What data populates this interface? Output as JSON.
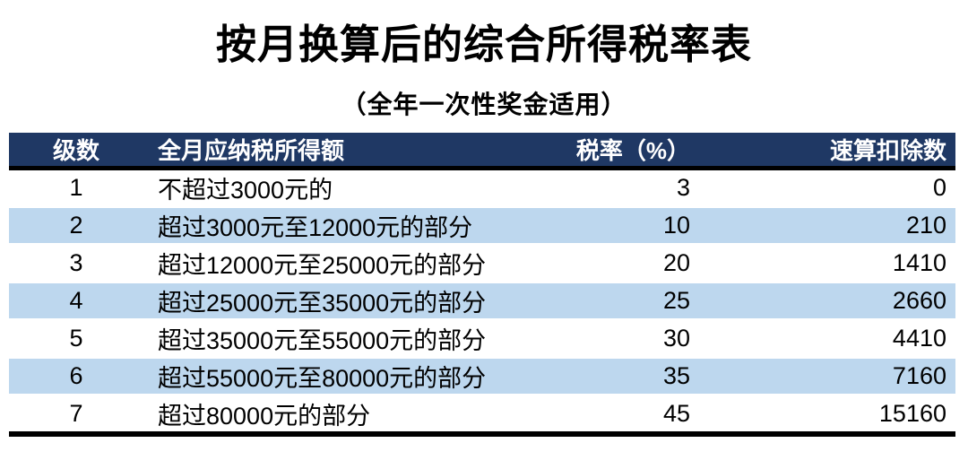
{
  "title": "按月换算后的综合所得税率表",
  "subtitle": "（全年一次性奖金适用）",
  "table": {
    "colors": {
      "header_bg": "#1F3864",
      "header_text": "#FFFFFF",
      "stripe_bg": "#BDD7EE",
      "row_bg": "#FFFFFF",
      "rule_color": "#000000",
      "text_color": "#000000",
      "page_bg": "#FFFFFF"
    },
    "columns": [
      {
        "key": "level",
        "label": "级数",
        "align": "center"
      },
      {
        "key": "income",
        "label": "全月应纳税所得额",
        "align": "left"
      },
      {
        "key": "rate",
        "label": "税率（%）",
        "align": "right"
      },
      {
        "key": "deduction",
        "label": "速算扣除数",
        "align": "right"
      }
    ],
    "rows": [
      {
        "level": "1",
        "income": "不超过3000元的",
        "rate": "3",
        "deduction": "0"
      },
      {
        "level": "2",
        "income": "超过3000元至12000元的部分",
        "rate": "10",
        "deduction": "210"
      },
      {
        "level": "3",
        "income": "超过12000元至25000元的部分",
        "rate": "20",
        "deduction": "1410"
      },
      {
        "level": "4",
        "income": "超过25000元至35000元的部分",
        "rate": "25",
        "deduction": "2660"
      },
      {
        "level": "5",
        "income": "超过35000元至55000元的部分",
        "rate": "30",
        "deduction": "4410"
      },
      {
        "level": "6",
        "income": "超过55000元至80000元的部分",
        "rate": "35",
        "deduction": "7160"
      },
      {
        "level": "7",
        "income": "超过80000元的部分",
        "rate": "45",
        "deduction": "15160"
      }
    ]
  }
}
